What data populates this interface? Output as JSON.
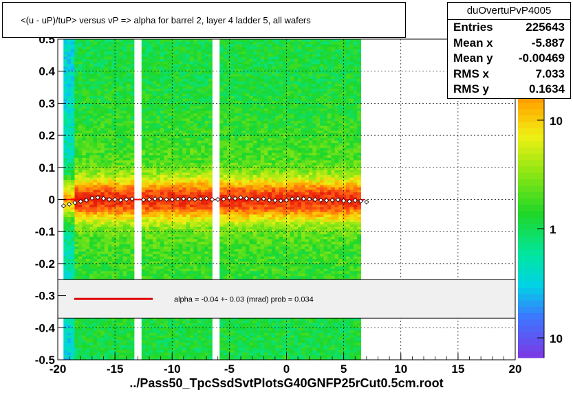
{
  "title": "<(u - uP)/tuP>  versus   vP =>  alpha for barrel 2, layer 4 ladder 5, all wafers",
  "stats": {
    "name": "duOvertuPvP4005",
    "rows": [
      {
        "label": "Entries",
        "value": "225643"
      },
      {
        "label": "Mean x",
        "value": "-5.887"
      },
      {
        "label": "Mean y",
        "value": "-0.00469"
      },
      {
        "label": "RMS x",
        "value": "7.033"
      },
      {
        "label": "RMS y",
        "value": "0.1634"
      }
    ]
  },
  "footer": "../Pass50_TpcSsdSvtPlotsG40GNFP25rCut0.5cm.root",
  "fit_legend": "alpha =   -0.04 +-  0.03 (mrad) prob = 0.034",
  "colorbar": {
    "labels": [
      "10",
      "1",
      "10"
    ]
  },
  "chart_data": {
    "type": "heatmap",
    "xlim": [
      -20,
      20
    ],
    "ylim": [
      -0.5,
      0.5
    ],
    "x_ticks": [
      -20,
      -15,
      -10,
      -5,
      0,
      5,
      10,
      15,
      20
    ],
    "y_ticks": [
      0.5,
      0.4,
      0.3,
      0.2,
      0.1,
      0,
      -0.1,
      -0.2,
      -0.3,
      -0.4,
      -0.5
    ],
    "x_tick_labels": [
      "-20",
      "-15",
      "-10",
      "-5",
      "0",
      "5",
      "10",
      "15",
      "20"
    ],
    "y_tick_labels": [
      "0.5",
      "0.4",
      "0.3",
      "0.2",
      "0.1",
      "0",
      "-0.1",
      "-0.2",
      "-0.3",
      "-0.4",
      "-0.5"
    ],
    "grid": true,
    "data_x_range": [
      -19.5,
      6.5
    ],
    "gaps_x": [
      -13,
      -6.2
    ],
    "band_center_y": 0.0,
    "band_halfwidth_y": 0.05,
    "fit_line": {
      "x": [
        -19.5,
        6.8
      ],
      "y": [
        0.0,
        -0.001
      ],
      "color": "#ff0000"
    },
    "profile_points": {
      "x": [
        -19.5,
        -19,
        -18.5,
        -18,
        -17.5,
        -17,
        -16.5,
        -16,
        -15.5,
        -15,
        -14.5,
        -14,
        -13.5,
        -12.5,
        -12,
        -11.5,
        -11,
        -10.5,
        -10,
        -9.5,
        -9,
        -8.5,
        -8,
        -7.5,
        -7,
        -6.5,
        -6,
        -5.5,
        -5,
        -4.5,
        -4,
        -3.5,
        -3,
        -2.5,
        -2,
        -1.5,
        -1,
        -0.5,
        0,
        0.5,
        1,
        1.5,
        2,
        2.5,
        3,
        3.5,
        4,
        4.5,
        5,
        5.5,
        6,
        6.5,
        7
      ],
      "y": [
        -0.02,
        -0.015,
        -0.01,
        -0.006,
        -0.002,
        0.004,
        0.006,
        0.003,
        0.0,
        0.0,
        -0.002,
        0.0,
        0.002,
        -0.001,
        0.0,
        0.002,
        0.002,
        0.0,
        0.0,
        0.001,
        0.002,
        0.001,
        0.0,
        0.002,
        0.003,
        0.0,
        0.0,
        0.001,
        0.005,
        0.003,
        0.006,
        0.003,
        0.001,
        0.0,
        0.002,
        -0.002,
        -0.003,
        -0.004,
        -0.002,
        0.002,
        0.003,
        0.002,
        0.001,
        0.0,
        -0.002,
        -0.003,
        -0.002,
        -0.001,
        -0.004,
        -0.006,
        -0.003,
        -0.005,
        -0.008
      ]
    },
    "legend_placement": "lower-center"
  }
}
